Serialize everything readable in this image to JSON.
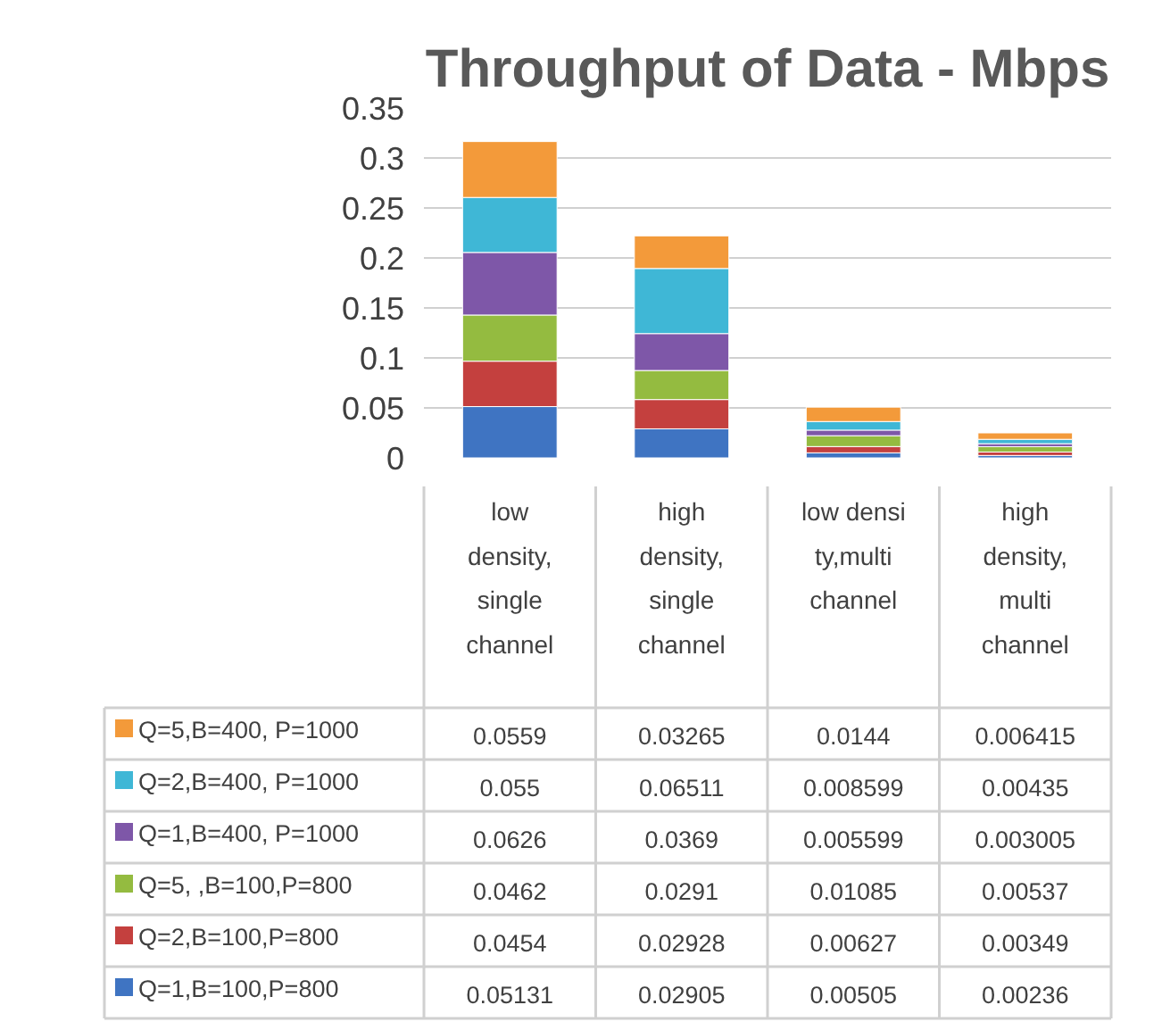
{
  "chart_data": {
    "type": "bar",
    "title": "Throughput of Data - Mbps",
    "stacked": true,
    "data_labels": true,
    "legend": "bottom",
    "grid": "y",
    "categories": [
      "low density, single channel",
      "high density, single channel",
      "low density,multi channel",
      "high density, multi channel"
    ],
    "ylim": [
      0,
      0.35
    ],
    "yticks": [
      0,
      0.05,
      0.1,
      0.15,
      0.2,
      0.25,
      0.3,
      0.35
    ],
    "series": [
      {
        "name": "Q=1,B=100,P=800",
        "color": "#3f74c2",
        "values": [
          0.05131,
          0.02905,
          0.00505,
          0.00236
        ]
      },
      {
        "name": "Q=2,B=100,P=800",
        "color": "#c4403e",
        "values": [
          0.0454,
          0.02928,
          0.00627,
          0.00349
        ]
      },
      {
        "name": "Q=5, ,B=100,P=800",
        "color": "#94bb40",
        "values": [
          0.0462,
          0.0291,
          0.01085,
          0.00537
        ]
      },
      {
        "name": "Q=1,B=400, P=1000",
        "color": "#7e57a8",
        "values": [
          0.0626,
          0.0369,
          0.005599,
          0.003005
        ]
      },
      {
        "name": "Q=2,B=400, P=1000",
        "color": "#3fb7d6",
        "values": [
          0.055,
          0.06511,
          0.008599,
          0.00435
        ]
      },
      {
        "name": "Q=5,B=400, P=1000",
        "color": "#f39a3a",
        "values": [
          0.0559,
          0.03265,
          0.0144,
          0.006415
        ]
      }
    ]
  }
}
